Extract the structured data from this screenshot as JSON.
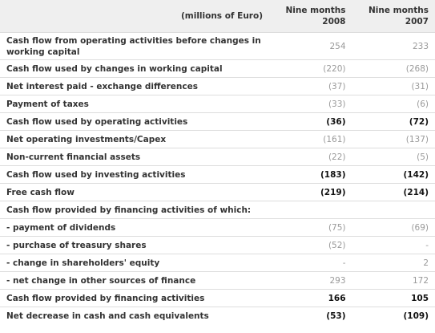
{
  "header": {
    "unit": "(millions of Euro)",
    "columns": [
      [
        "Nine months",
        "2008"
      ],
      [
        "Nine months",
        "2007"
      ]
    ]
  },
  "table": {
    "rows": [
      {
        "label": "Cash flow from operating activities before changes in working capital",
        "values": [
          "254",
          "233"
        ]
      },
      {
        "label": "Cash flow used by changes in working capital",
        "values": [
          "(220)",
          "(268)"
        ]
      },
      {
        "label": "Net interest paid - exchange differences",
        "values": [
          "(37)",
          "(31)"
        ]
      },
      {
        "label": "Payment of taxes",
        "values": [
          "(33)",
          "(6)"
        ]
      },
      {
        "label": "Cash flow used by operating activities",
        "values": [
          "(36)",
          "(72)"
        ]
      },
      {
        "label": "Net operating investments/Capex",
        "values": [
          "(161)",
          "(137)"
        ]
      },
      {
        "label": "Non-current financial assets",
        "values": [
          "(22)",
          "(5)"
        ]
      },
      {
        "label": "Cash flow used by investing activities",
        "values": [
          "(183)",
          "(142)"
        ]
      },
      {
        "label": "Free cash flow",
        "values": [
          "(219)",
          "(214)"
        ]
      },
      {
        "label": "Cash flow provided by financing activities of which:"
      },
      {
        "label": "- payment of dividends",
        "values": [
          "(75)",
          "(69)"
        ]
      },
      {
        "label": "- purchase of treasury shares",
        "values": [
          "(52)",
          "-"
        ]
      },
      {
        "label": "- change in shareholders' equity",
        "values": [
          "-",
          "2"
        ]
      },
      {
        "label": "- net change in other sources of finance",
        "values": [
          "293",
          "172"
        ]
      },
      {
        "label": "Cash flow provided by financing activities",
        "values": [
          "166",
          "105"
        ]
      },
      {
        "label": "Net decrease in cash and cash equivalents",
        "values": [
          "(53)",
          "(109)"
        ]
      }
    ]
  }
}
